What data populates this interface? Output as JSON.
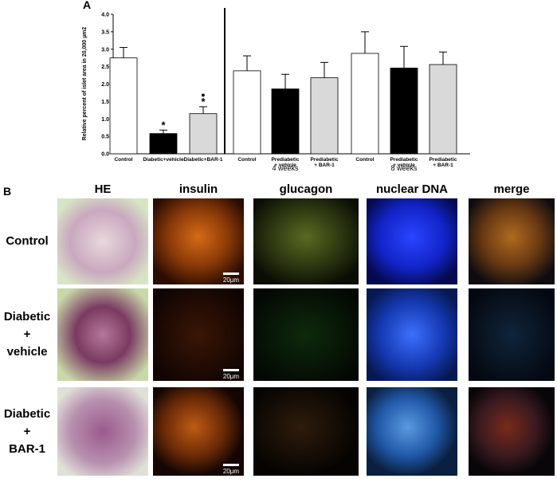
{
  "chart_data": {
    "type": "bar",
    "panel_label": "A",
    "ylabel": "Relative percent of islet area in  20,000 µm2",
    "categories": [
      "Control",
      "Diabetic+vehicle",
      "Diabetic+BAR-1",
      "Control",
      "Prediabetic\n+ vehicle",
      "Prediabetic\n+ BAR-1",
      "Control",
      "Prediabetic\n+ vehicle",
      "Prediabetic\n+ BAR-1"
    ],
    "values": [
      2.75,
      0.58,
      1.15,
      2.38,
      1.86,
      2.18,
      2.88,
      2.46,
      2.56
    ],
    "errors": [
      0.3,
      0.1,
      0.2,
      0.43,
      0.42,
      0.44,
      0.62,
      0.62,
      0.36
    ],
    "colors": [
      "#ffffff",
      "#000000",
      "#d9d9d9",
      "#ffffff",
      "#000000",
      "#d9d9d9",
      "#ffffff",
      "#000000",
      "#d9d9d9"
    ],
    "ylim": [
      0,
      4
    ],
    "yticks": [
      {
        "value": 0,
        "label": "0.0"
      },
      {
        "value": 0.5,
        "label": "0.5"
      },
      {
        "value": 1,
        "label": "1.0"
      },
      {
        "value": 1.5,
        "label": "1.5"
      },
      {
        "value": 2,
        "label": "2.0"
      },
      {
        "value": 2.5,
        "label": "2.5"
      },
      {
        "value": 3,
        "label": "3.0"
      },
      {
        "value": 3.5,
        "label": "3.5"
      },
      {
        "value": 4,
        "label": "4.0"
      }
    ],
    "group_labels": [
      "4 weeks",
      "8 weeks"
    ],
    "annotations": [
      "*",
      "*",
      "●"
    ]
  },
  "panel_b": {
    "panel_label": "B",
    "columns": [
      "HE",
      "insulin",
      "glucagon",
      "nuclear DNA",
      "merge"
    ],
    "rows": [
      "Control",
      "Diabetic\n+\nvehicle",
      "Diabetic\n+\nBAR-1"
    ],
    "scale_bars": [
      "20μm",
      "20μm",
      "20μm"
    ]
  }
}
